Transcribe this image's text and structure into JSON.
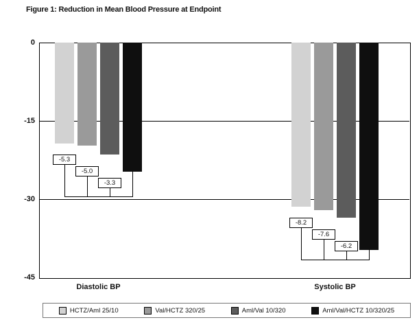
{
  "chart_data": {
    "type": "bar",
    "title": "Figure 1: Reduction in Mean Blood Pressure at Endpoint",
    "categories": [
      "Diastolic BP",
      "Systolic BP"
    ],
    "series": [
      {
        "name": "HCTZ/Aml 25/10",
        "color": "#d2d2d2",
        "values": [
          -19.4,
          -31.5
        ]
      },
      {
        "name": "Val/HCTZ 320/25",
        "color": "#9a9a9a",
        "values": [
          -19.7,
          -32.1
        ]
      },
      {
        "name": "Aml/Val 10/320",
        "color": "#5c5c5c",
        "values": [
          -21.4,
          -33.5
        ]
      },
      {
        "name": "Aml/Val/HCTZ 10/320/25",
        "color": "#0f0f0f",
        "values": [
          -24.7,
          -39.7
        ]
      }
    ],
    "difference_labels": [
      [
        "-5.3",
        "-5.0",
        "-3.3"
      ],
      [
        "-8.2",
        "-7.6",
        "-6.2"
      ]
    ],
    "ylim": [
      -45,
      0
    ],
    "yticks": [
      0,
      -15,
      -30,
      -45
    ],
    "grid": "horizontal",
    "legend_position": "bottom"
  }
}
